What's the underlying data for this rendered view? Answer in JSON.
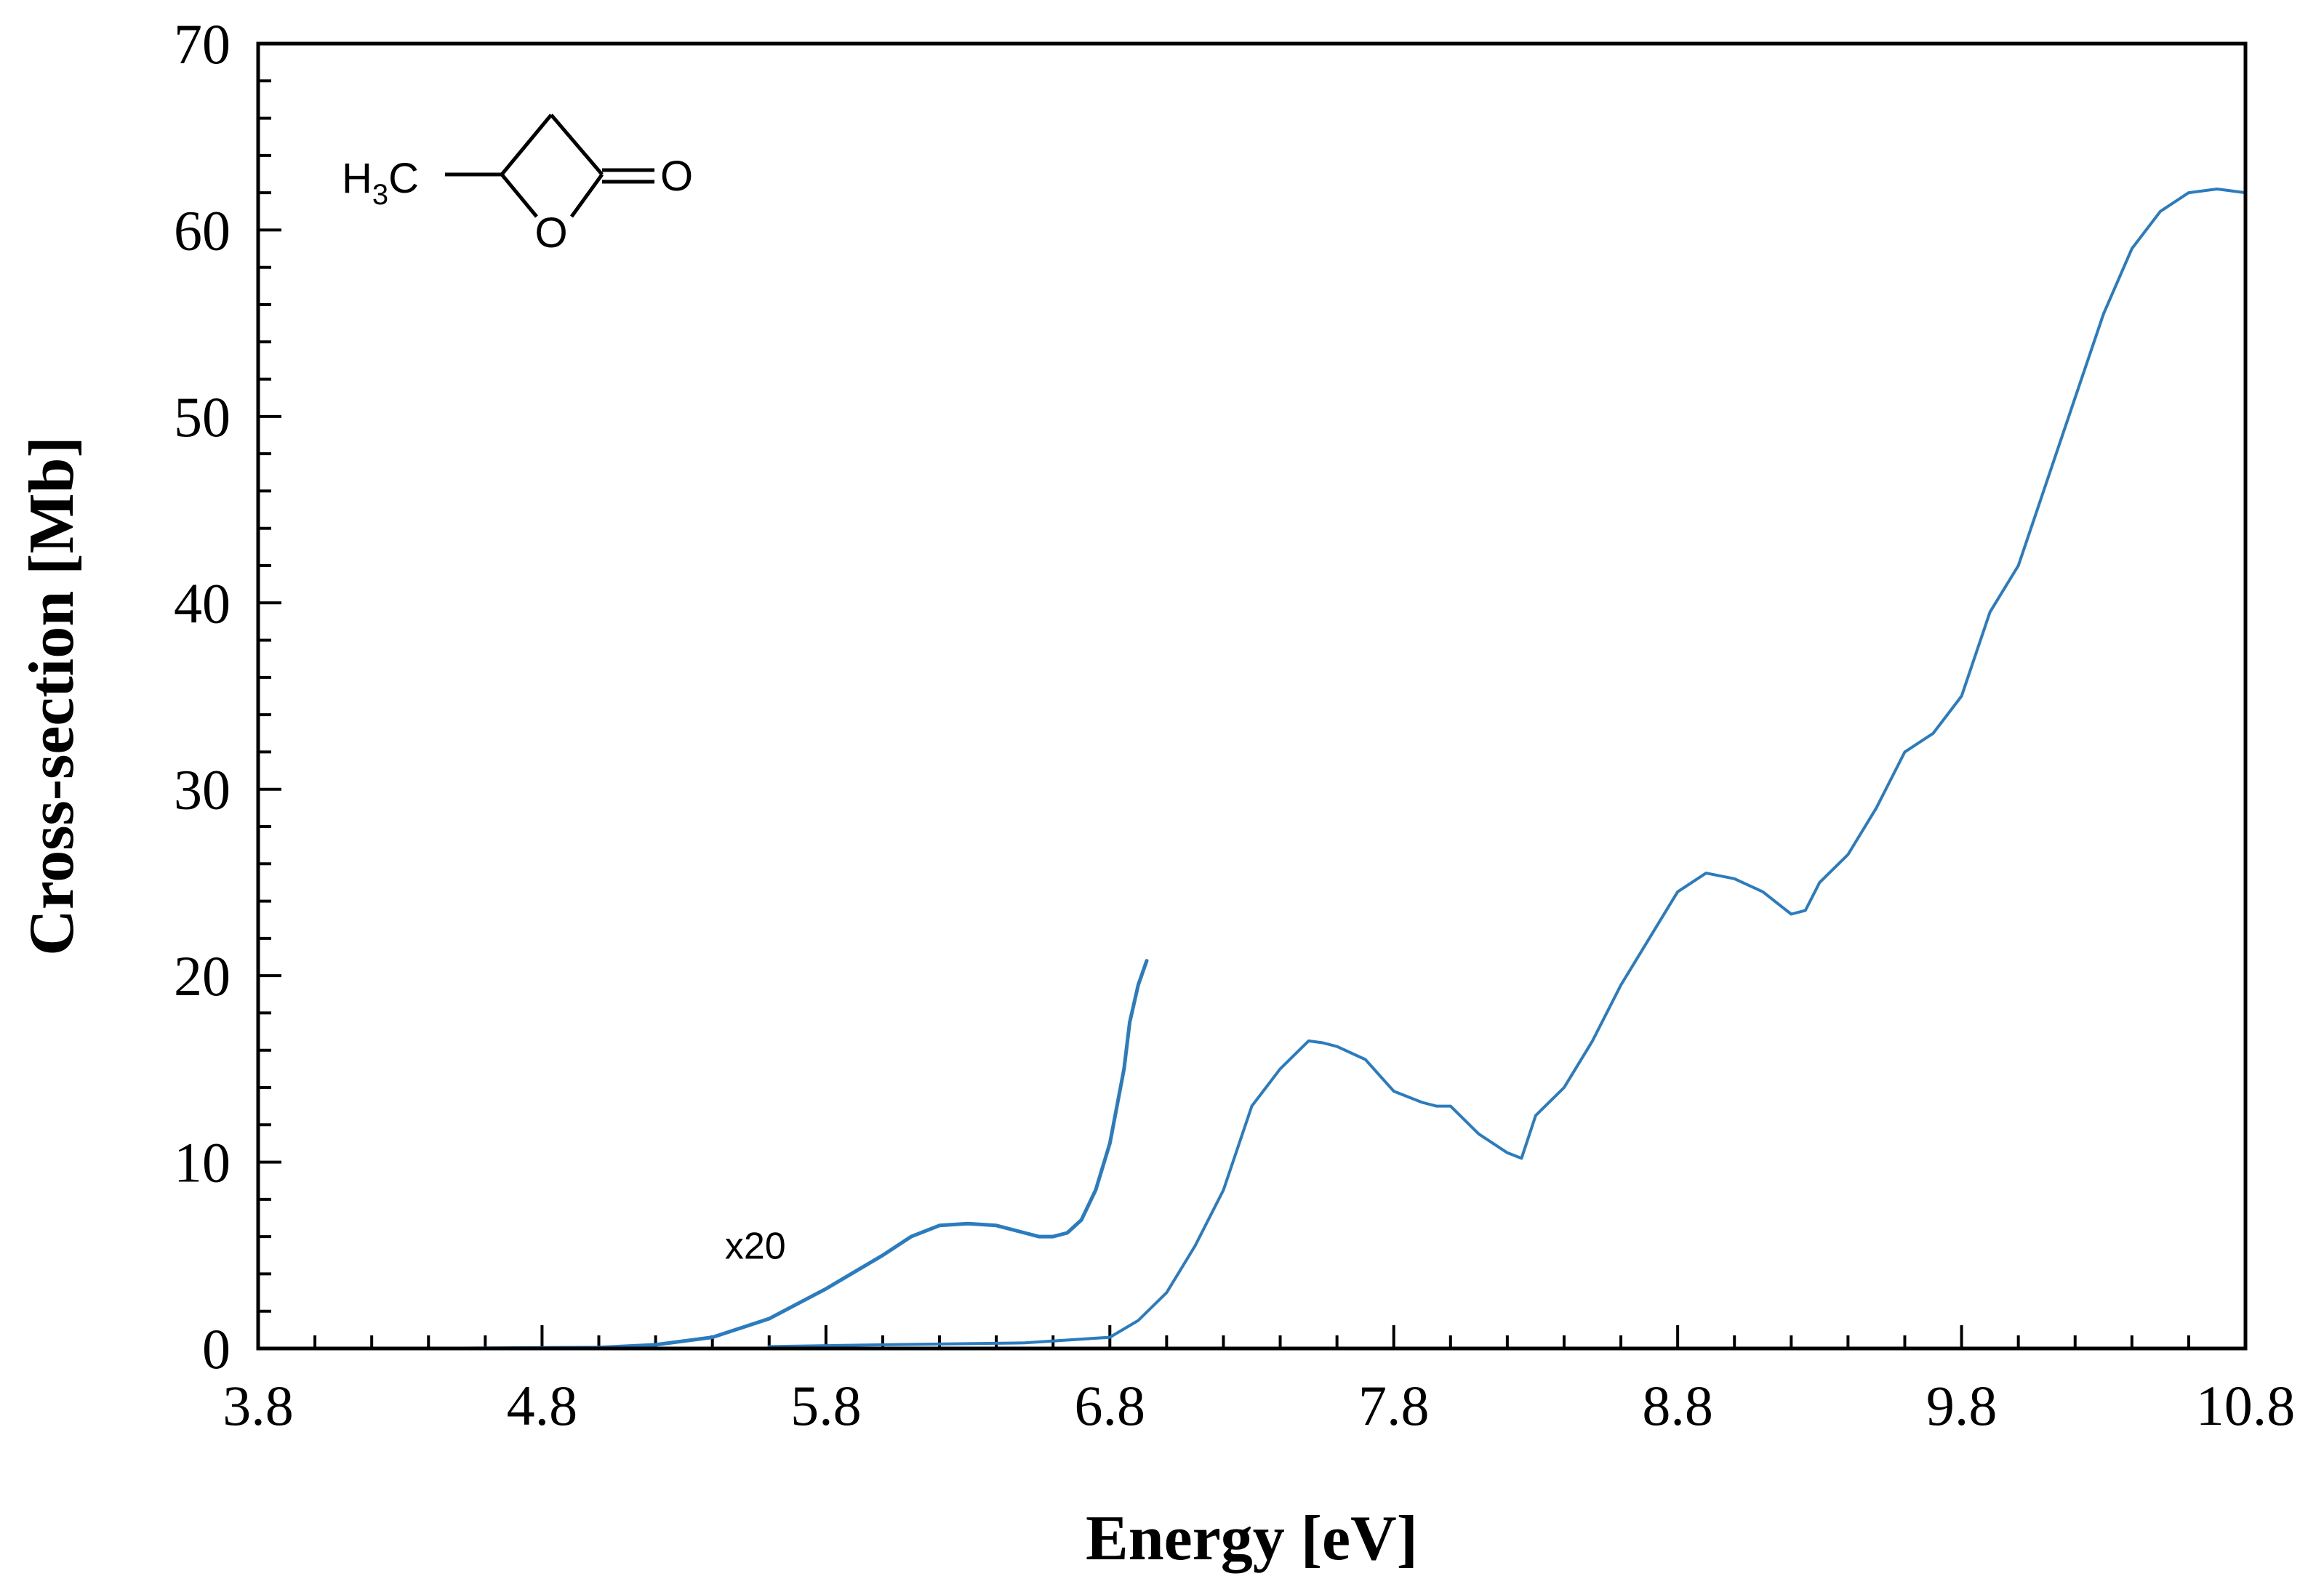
{
  "chart_data": {
    "type": "line",
    "title": "",
    "xlabel": "Energy [eV]",
    "ylabel": "Cross-section [Mb]",
    "xlim": [
      3.8,
      10.8
    ],
    "ylim": [
      0,
      70
    ],
    "x_ticks": [
      "3.8",
      "4.8",
      "5.8",
      "6.8",
      "7.8",
      "8.8",
      "9.8",
      "10.8"
    ],
    "y_ticks": [
      "0",
      "10",
      "20",
      "30",
      "40",
      "50",
      "60",
      "70"
    ],
    "grid": false,
    "legend": "none",
    "line_color": "#2b7bbf",
    "annotations": [
      {
        "text": "x20",
        "x": 5.7,
        "y": 5.6
      }
    ],
    "molecule": {
      "h_label": "H",
      "sub_label": "3",
      "c_label": "C",
      "ring_o_label": "O",
      "carbonyl_o_label": "O"
    },
    "series": [
      {
        "x": [
          3.8,
          4.5,
          5.0,
          5.2,
          5.4,
          5.6,
          5.8,
          6.0,
          6.1,
          6.2,
          6.3,
          6.4,
          6.5,
          6.55,
          6.6,
          6.65,
          6.7,
          6.75,
          6.8,
          6.85,
          6.87,
          6.9,
          6.93
        ],
        "y": [
          0,
          0,
          0.05,
          0.2,
          0.6,
          1.6,
          3.2,
          5.0,
          6.0,
          6.6,
          6.7,
          6.6,
          6.2,
          6.0,
          6.0,
          6.2,
          6.9,
          8.5,
          11.0,
          15.0,
          17.5,
          19.5,
          20.8
        ]
      },
      {
        "x": [
          5.6,
          6.0,
          6.5,
          6.8,
          6.9,
          7.0,
          7.1,
          7.2,
          7.3,
          7.35,
          7.4,
          7.5,
          7.55,
          7.6,
          7.7,
          7.8,
          7.9,
          7.95,
          8.0,
          8.1,
          8.2,
          8.25,
          8.3,
          8.4,
          8.5,
          8.6,
          8.7,
          8.8,
          8.9,
          9.0,
          9.1,
          9.2,
          9.25,
          9.3,
          9.4,
          9.5,
          9.6,
          9.7,
          9.8,
          9.9,
          10.0,
          10.1,
          10.2,
          10.3,
          10.4,
          10.5,
          10.6,
          10.7,
          10.8
        ],
        "y": [
          0.1,
          0.2,
          0.3,
          0.6,
          1.5,
          3.0,
          5.5,
          8.5,
          13.0,
          14.0,
          15.0,
          16.5,
          16.4,
          16.2,
          15.5,
          13.8,
          13.2,
          13.0,
          13.0,
          11.5,
          10.5,
          10.2,
          12.5,
          14.0,
          16.5,
          19.5,
          22.0,
          24.5,
          25.5,
          25.2,
          24.5,
          23.3,
          23.5,
          25.0,
          26.5,
          29.0,
          32.0,
          33.0,
          35.0,
          39.5,
          42.0,
          46.5,
          51.0,
          55.5,
          59.0,
          61.0,
          62.0,
          62.2,
          62.0
        ]
      }
    ]
  }
}
